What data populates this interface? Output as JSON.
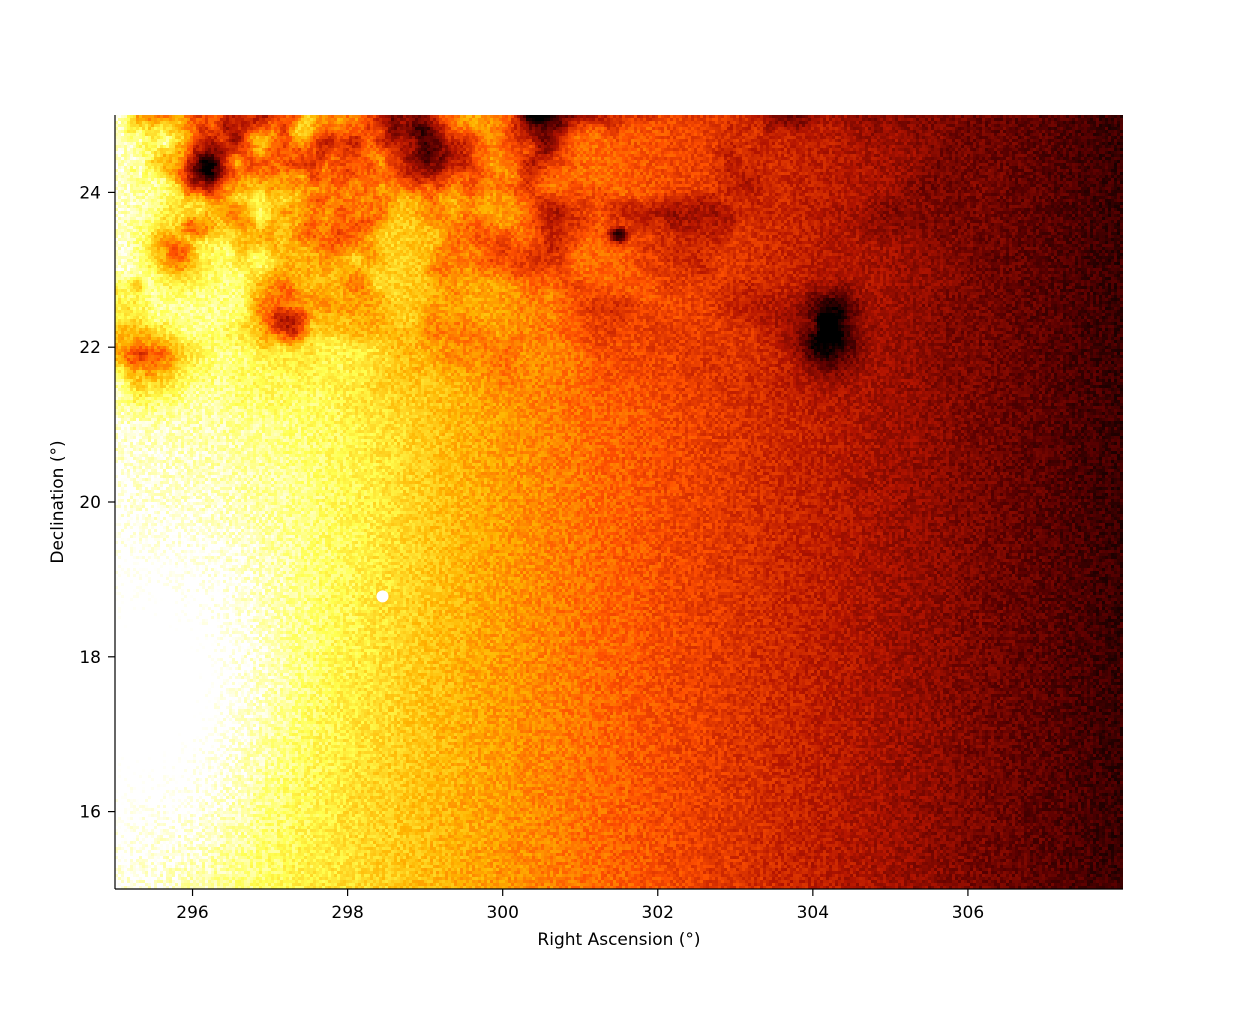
{
  "chart_data": {
    "type": "heatmap",
    "title": "",
    "xlabel": "Right Ascension (°)",
    "ylabel": "Declination (°)",
    "xlim": [
      295.0,
      308.0
    ],
    "ylim": [
      15.0,
      25.0
    ],
    "x_ticks": [
      296,
      298,
      300,
      302,
      304,
      306
    ],
    "y_ticks": [
      16,
      18,
      20,
      22,
      24
    ],
    "x_tick_labels": [
      "296",
      "298",
      "300",
      "302",
      "304",
      "306"
    ],
    "y_tick_labels": [
      "16",
      "18",
      "20",
      "22",
      "24"
    ],
    "colormap": "afmhot",
    "colors": [
      "#000000",
      "#5a0000",
      "#b41400",
      "#ff5000",
      "#ffb400",
      "#ffff50",
      "#ffffff"
    ],
    "grid": false,
    "legend": "none",
    "features": {
      "gradient": "bright (white/yellow) toward low Right Ascension, fading to black toward high Right Ascension",
      "bright_core": {
        "ra": 295.8,
        "dec": 17.5
      },
      "point_source": {
        "ra": 298.45,
        "dec": 18.78
      },
      "dark_patch": {
        "ra": 301.5,
        "dec": 23.45
      },
      "dark_dust_lanes": [
        {
          "ra": 295.4,
          "dec": 21.8
        },
        {
          "ra": 295.8,
          "dec": 23.3
        },
        {
          "ra": 296.2,
          "dec": 24.3
        },
        {
          "ra": 297.2,
          "dec": 22.3
        },
        {
          "ra": 297.7,
          "dec": 24.4
        },
        {
          "ra": 298.9,
          "dec": 24.6
        },
        {
          "ra": 300.4,
          "dec": 24.8
        },
        {
          "ra": 304.2,
          "dec": 22.2
        }
      ]
    }
  }
}
